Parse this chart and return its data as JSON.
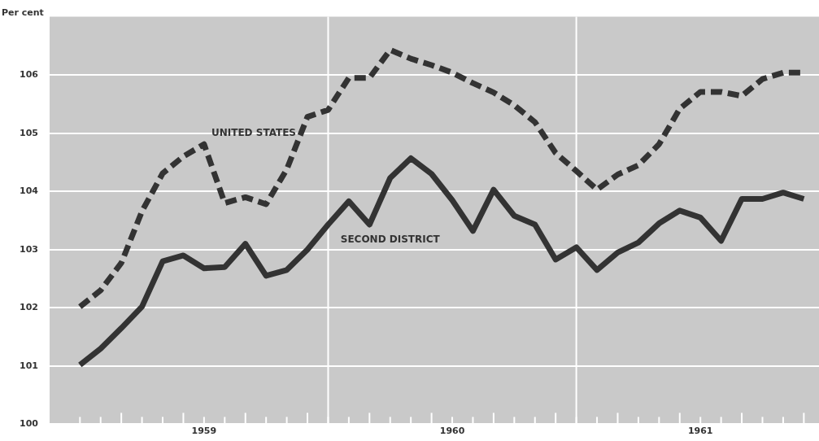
{
  "chart_data": {
    "type": "line",
    "ylabel": "Per cent",
    "x": [
      "1959-01",
      "1959-02",
      "1959-03",
      "1959-04",
      "1959-05",
      "1959-06",
      "1959-07",
      "1959-08",
      "1959-09",
      "1959-10",
      "1959-11",
      "1959-12",
      "1960-01",
      "1960-02",
      "1960-03",
      "1960-04",
      "1960-05",
      "1960-06",
      "1960-07",
      "1960-08",
      "1960-09",
      "1960-10",
      "1960-11",
      "1960-12",
      "1961-01",
      "1961-02",
      "1961-03",
      "1961-04",
      "1961-05",
      "1961-06",
      "1961-07",
      "1961-08",
      "1961-09",
      "1961-10",
      "1961-11",
      "1961-12"
    ],
    "series": [
      {
        "name": "UNITED STATES",
        "color": "#333333",
        "line_style": "dashed",
        "values": [
          102.02,
          102.3,
          102.77,
          103.66,
          104.31,
          104.6,
          104.81,
          103.8,
          103.9,
          103.78,
          104.38,
          105.28,
          105.4,
          105.95,
          105.95,
          106.43,
          106.28,
          106.17,
          106.04,
          105.86,
          105.7,
          105.48,
          105.19,
          104.66,
          104.35,
          104.03,
          104.29,
          104.45,
          104.81,
          105.42,
          105.71,
          105.71,
          105.64,
          105.93,
          106.04,
          106.04
        ]
      },
      {
        "name": "SECOND DISTRICT",
        "color": "#333333",
        "line_style": "solid",
        "values": [
          101.02,
          101.3,
          101.65,
          102.02,
          102.8,
          102.9,
          102.68,
          102.7,
          103.1,
          102.55,
          102.65,
          103.0,
          103.43,
          103.83,
          103.43,
          104.23,
          104.57,
          104.3,
          103.85,
          103.32,
          104.03,
          103.58,
          103.43,
          102.83,
          103.04,
          102.65,
          102.95,
          103.12,
          103.45,
          103.67,
          103.55,
          103.15,
          103.87,
          103.87,
          103.98,
          103.87
        ]
      }
    ],
    "xlim": [
      "1958-11-17",
      "1961-12-23"
    ],
    "xticks": [
      {
        "value": "1959-01",
        "label": null
      },
      {
        "value": "1959-02",
        "label": null
      },
      {
        "value": "1959-03",
        "label": null
      },
      {
        "value": "1959-04",
        "label": null
      },
      {
        "value": "1959-05",
        "label": null
      },
      {
        "value": "1959-06",
        "label": null
      },
      {
        "value": "1959-07",
        "label": null
      },
      {
        "value": "1959-08",
        "label": null
      },
      {
        "value": "1959-09",
        "label": null
      },
      {
        "value": "1959-10",
        "label": null
      },
      {
        "value": "1959-11",
        "label": null
      },
      {
        "value": "1959-12",
        "label": null
      },
      {
        "value": "1960-01",
        "label": null
      },
      {
        "value": "1960-02",
        "label": null
      },
      {
        "value": "1960-03",
        "label": null
      },
      {
        "value": "1960-04",
        "label": null
      },
      {
        "value": "1960-05",
        "label": null
      },
      {
        "value": "1960-06",
        "label": null
      },
      {
        "value": "1960-07",
        "label": null
      },
      {
        "value": "1960-08",
        "label": null
      },
      {
        "value": "1960-09",
        "label": null
      },
      {
        "value": "1960-10",
        "label": null
      },
      {
        "value": "1960-11",
        "label": null
      },
      {
        "value": "1960-12",
        "label": null
      },
      {
        "value": "1961-01",
        "label": null
      },
      {
        "value": "1961-02",
        "label": null
      },
      {
        "value": "1961-03",
        "label": null
      },
      {
        "value": "1961-04",
        "label": null
      },
      {
        "value": "1961-05",
        "label": null
      },
      {
        "value": "1961-06",
        "label": null
      },
      {
        "value": "1961-07",
        "label": null
      },
      {
        "value": "1961-08",
        "label": null
      },
      {
        "value": "1961-09",
        "label": null
      },
      {
        "value": "1961-10",
        "label": null
      },
      {
        "value": "1961-11",
        "label": null
      },
      {
        "value": "1961-12",
        "label": null
      },
      {
        "value": "1959-07-01",
        "label": "1959"
      },
      {
        "value": "1960-07-01",
        "label": "1960"
      },
      {
        "value": "1961-07-01",
        "label": "1961"
      }
    ],
    "ylim": [
      100,
      107
    ],
    "yticks": [
      100,
      101,
      102,
      103,
      104,
      105,
      106
    ],
    "ref_lines": [
      {
        "axis": "x",
        "value": "1960-01-01",
        "color": "#ffffff"
      },
      {
        "axis": "x",
        "value": "1961-01-01",
        "color": "#ffffff"
      }
    ],
    "grid": "y",
    "legend": false,
    "marker": "none"
  }
}
